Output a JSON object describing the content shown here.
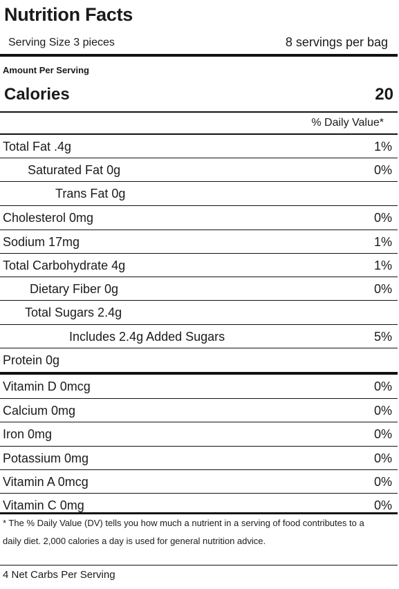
{
  "title": "Nutrition Facts",
  "serving_size": "Serving Size 3 pieces",
  "servings_per": "8 servings per bag",
  "amount_per_serving": "Amount Per Serving",
  "calories_label": "Calories",
  "calories_value": "20",
  "daily_value_header": "% Daily Value*",
  "nutrients": [
    {
      "label": "Total Fat .4g",
      "pct": "1%"
    },
    {
      "label": "Saturated Fat 0g",
      "pct": "0%"
    },
    {
      "label": "Trans Fat 0g",
      "pct": ""
    },
    {
      "label": "Cholesterol 0mg",
      "pct": "0%"
    },
    {
      "label": "Sodium 17mg",
      "pct": "1%"
    },
    {
      "label": "Total Carbohydrate 4g",
      "pct": "1%"
    },
    {
      "label": "Dietary Fiber 0g",
      "pct": "0%"
    },
    {
      "label": "Total Sugars 2.4g",
      "pct": ""
    },
    {
      "label": "Includes 2.4g Added Sugars",
      "pct": "5%"
    },
    {
      "label": "Protein 0g",
      "pct": ""
    }
  ],
  "vitamins": [
    {
      "label": "Vitamin D 0mcg",
      "pct": "0%"
    },
    {
      "label": "Calcium 0mg",
      "pct": "0%"
    },
    {
      "label": "Iron 0mg",
      "pct": "0%"
    },
    {
      "label": "Potassium 0mg",
      "pct": "0%"
    },
    {
      "label": "Vitamin A 0mcg",
      "pct": "0%"
    },
    {
      "label": "Vitamin C 0mg",
      "pct": "0%"
    }
  ],
  "footnote": "* The % Daily Value (DV) tells you how much a nutrient in a serving of food contributes to a daily diet. 2,000 calories a day is used for general nutrition advice.",
  "net_carbs": "4 Net Carbs Per Serving"
}
